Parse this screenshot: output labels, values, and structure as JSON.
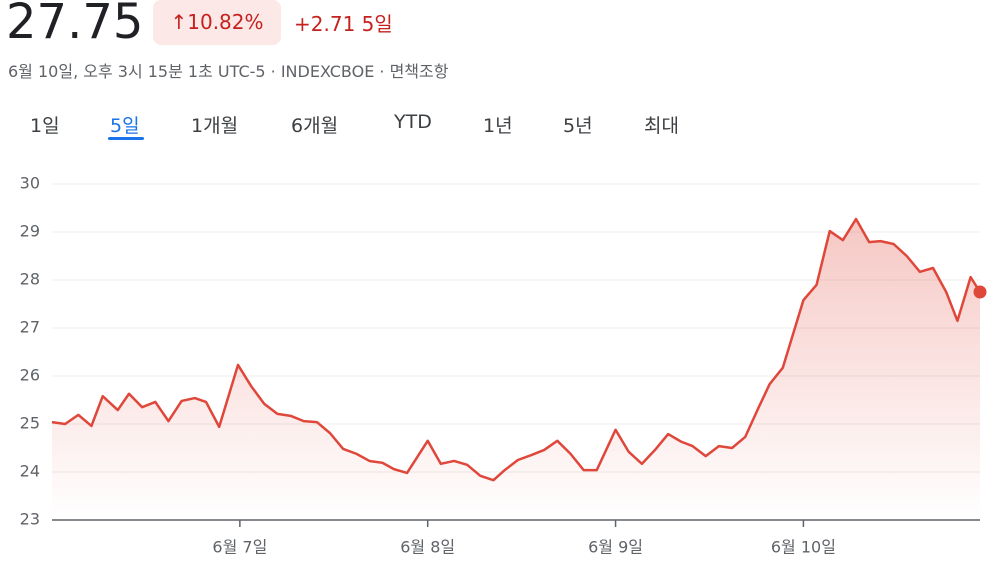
{
  "header": {
    "price": "27.75",
    "change_pct": "10.82%",
    "change_abs": "+2.71 5일",
    "subtitle": "6월 10일, 오후 3시 15분 1초 UTC-5 · INDEXCBOE · 면책조항",
    "tabs": [
      "1일",
      "5일",
      "1개월",
      "6개월",
      "YTD",
      "1년",
      "5년",
      "최대"
    ],
    "selected_tab": 1
  },
  "chart_data": {
    "type": "line",
    "color": "#e0473b",
    "grid": true,
    "x": [
      6.0,
      6.07,
      6.14,
      6.21,
      6.27,
      6.35,
      6.41,
      6.48,
      6.55,
      6.62,
      6.69,
      6.76,
      6.82,
      6.89,
      6.99,
      7.06,
      7.13,
      7.2,
      7.27,
      7.34,
      7.41,
      7.48,
      7.55,
      7.62,
      7.69,
      7.76,
      7.82,
      7.89,
      8.0,
      8.07,
      8.14,
      8.21,
      8.28,
      8.35,
      8.41,
      8.48,
      8.55,
      8.62,
      8.69,
      8.76,
      8.83,
      8.9,
      9.0,
      9.07,
      9.14,
      9.21,
      9.28,
      9.35,
      9.41,
      9.48,
      9.55,
      9.62,
      9.69,
      9.76,
      9.82,
      9.89,
      10.0,
      10.07,
      10.14,
      10.21,
      10.28,
      10.35,
      10.41,
      10.48,
      10.55,
      10.62,
      10.69,
      10.76,
      10.82,
      10.89,
      10.94
    ],
    "values": [
      25.04,
      25.0,
      25.19,
      24.96,
      25.58,
      25.29,
      25.63,
      25.35,
      25.46,
      25.06,
      25.48,
      25.54,
      25.46,
      24.94,
      26.23,
      25.79,
      25.42,
      25.21,
      25.17,
      25.06,
      25.04,
      24.81,
      24.48,
      24.38,
      24.23,
      24.19,
      24.06,
      23.98,
      24.65,
      24.17,
      24.23,
      24.15,
      23.92,
      23.83,
      24.04,
      24.25,
      24.35,
      24.46,
      24.65,
      24.38,
      24.04,
      24.04,
      24.88,
      24.42,
      24.17,
      24.46,
      24.79,
      24.63,
      24.54,
      24.33,
      24.54,
      24.5,
      24.73,
      25.33,
      25.83,
      26.17,
      27.58,
      27.9,
      29.02,
      28.83,
      29.27,
      28.79,
      28.81,
      28.75,
      28.5,
      28.17,
      28.25,
      27.75,
      27.15,
      28.06,
      27.75
    ],
    "xlim": [
      6,
      10.94
    ],
    "xticks": [
      {
        "value": 7,
        "label": "6월 7일"
      },
      {
        "value": 8,
        "label": "6월 8일"
      },
      {
        "value": 9,
        "label": "6월 9일"
      },
      {
        "value": 10,
        "label": "6월 10일"
      }
    ],
    "ylim": [
      23,
      30
    ],
    "yticks": [
      23,
      24,
      25,
      26,
      27,
      28,
      29,
      30
    ]
  }
}
